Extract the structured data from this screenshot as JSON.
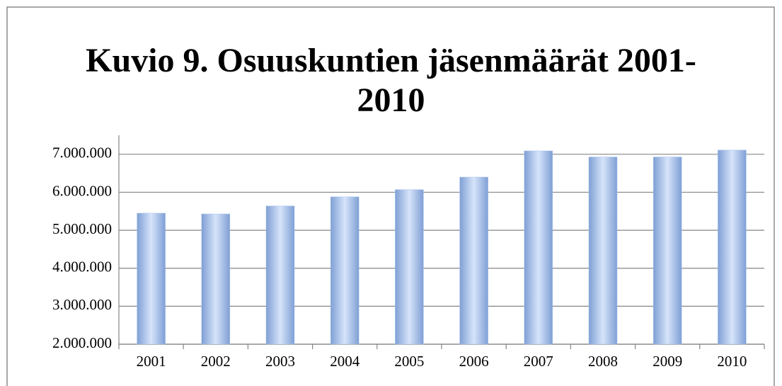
{
  "chart_data": {
    "type": "bar",
    "title": "Kuvio 9. Osuuskuntien jäsenmäärät 2001-2010",
    "categories": [
      "2001",
      "2002",
      "2003",
      "2004",
      "2005",
      "2006",
      "2007",
      "2008",
      "2009",
      "2010"
    ],
    "values": [
      5450000,
      5430000,
      5640000,
      5880000,
      6070000,
      6400000,
      7090000,
      6930000,
      6930000,
      7110000
    ],
    "color": "#a9c4ee",
    "ylim": [
      2000000,
      7500000
    ],
    "yticks": [
      {
        "value": 2000000,
        "label": "2.000.000"
      },
      {
        "value": 3000000,
        "label": "3.000.000"
      },
      {
        "value": 4000000,
        "label": "4.000.000"
      },
      {
        "value": 5000000,
        "label": "5.000.000"
      },
      {
        "value": 6000000,
        "label": "6.000.000"
      },
      {
        "value": 7000000,
        "label": "7.000.000"
      }
    ],
    "grid": true
  }
}
